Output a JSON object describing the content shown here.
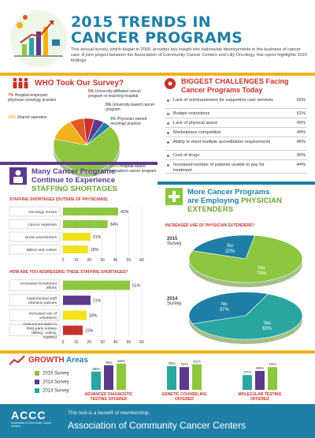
{
  "header": {
    "title_line1": "2015 TRENDS IN",
    "title_line2": "CANCER PROGRAMS",
    "intro": "This annual survey, which began in 2009, provides key insight into nationwide developments in the business of cancer care. A joint project between the Association of Community Cancer Centers and Lilly Oncology, this report highlights 2015 findings."
  },
  "who_section": {
    "title": "WHO Took Our Survey?",
    "chart_data": {
      "type": "pie",
      "slices": [
        {
          "label": "Hospital-based outpatient cancer program",
          "value": 66,
          "pct_label": "66%",
          "color": "#8dc63f"
        },
        {
          "label": "Shared operation",
          "value": 13,
          "pct_label": "13%",
          "color": "#f2b21b"
        },
        {
          "label": "Hospital-employed physician oncology practice",
          "value": 7,
          "pct_label": "7%",
          "color": "#e35a26"
        },
        {
          "label": "University-affiliated cancer program or teaching hospital",
          "value": 5,
          "pct_label": "5%",
          "color": "#c8312b"
        },
        {
          "label": "University-based cancer program",
          "value": 5,
          "pct_label": "5%",
          "color": "#5b3a8c"
        },
        {
          "label": "Physician-owned oncology practice",
          "value": 4,
          "pct_label": "4%",
          "color": "#1f7fa6"
        }
      ]
    }
  },
  "challenges": {
    "title_line1": "BIGGEST CHALLENGES Facing",
    "title_line2": "Cancer Programs Today",
    "items": [
      {
        "label": "Lack of reimbursement for supportive care services",
        "value": "65%"
      },
      {
        "label": "Budget restrictions",
        "value": "61%"
      },
      {
        "label": "Lack of physical space",
        "value": "49%"
      },
      {
        "label": "Marketplace competition",
        "value": "49%"
      },
      {
        "label": "Ability to meet multiple accreditation requirements",
        "value": "46%"
      },
      {
        "label": "Cost of drugs",
        "value": "45%"
      },
      {
        "label": "Increased number of patients unable to pay for treatment",
        "value": "44%"
      }
    ]
  },
  "staffing": {
    "title_line1": "Many Cancer Programs",
    "title_line2": "Continue to Experience",
    "title_line3": "STAFFING SHORTAGES",
    "chart_title": "STAFFING SHORTAGES (OUTSIDE OF PHYSICIANS)",
    "chart_data": {
      "type": "bar",
      "categories": [
        "Oncology nurses",
        "Cancer registrars",
        "Nurse practitioners",
        "Billers and coders"
      ],
      "values": [
        42,
        34,
        21,
        19
      ],
      "value_labels": [
        "42%",
        "34%",
        "21%",
        "19%"
      ],
      "colors": [
        "#8dc63f",
        "#8dc63f",
        "#f2e21b",
        "#f2e21b"
      ],
      "xlim": [
        0,
        60
      ],
      "ticks": [
        "0",
        "10",
        "20",
        "30",
        "40",
        "50",
        "60"
      ]
    }
  },
  "addressing": {
    "chart_title": "HOW ARE YOU ADDRESSING THESE STAFFING SHORTAGES?",
    "chart_data": {
      "type": "bar",
      "categories": [
        "Increased recruitment efforts",
        "Implemented staff retention policies",
        "Increased use of volunteers",
        "Outsourced tasks to third-party entities (billing, coding, registry)"
      ],
      "values": [
        51,
        21,
        18,
        15
      ],
      "value_labels": [
        "51%",
        "21%",
        "18%",
        "15%"
      ],
      "colors": [
        "#8dc63f",
        "#5b3a8c",
        "#f2e21b",
        "#c8312b"
      ],
      "xlim": [
        0,
        60
      ],
      "ticks": [
        "0",
        "10",
        "20",
        "30",
        "40",
        "50",
        "60"
      ]
    }
  },
  "extenders": {
    "title_line1": "More Cancer Programs",
    "title_line2": "are Employing",
    "title_highlight": "PHYSICIAN",
    "title_line3": "EXTENDERS",
    "chart_title": "INCREASED USE OF PHYSICIAN EXTENDERS?",
    "chart_data": [
      {
        "type": "pie",
        "year": "2015",
        "label2": "Survey",
        "slices": [
          {
            "label": "Yes",
            "value": 78,
            "pct_label": "78%",
            "color": "#8dc63f"
          },
          {
            "label": "No",
            "value": 22,
            "pct_label": "22%",
            "color": "#1f7fa6"
          }
        ]
      },
      {
        "type": "pie",
        "year": "2014",
        "label2": "Survey",
        "slices": [
          {
            "label": "Yes",
            "value": 63,
            "pct_label": "63%",
            "color": "#2aa6a0"
          },
          {
            "label": "No",
            "value": 37,
            "pct_label": "37%",
            "color": "#1f7fa6"
          }
        ]
      }
    ]
  },
  "growth": {
    "title_word": "GROWTH",
    "title_rest": "Areas",
    "legend": [
      {
        "label": "2015 Survey",
        "color": "#8dc63f"
      },
      {
        "label": "2014 Survey",
        "color": "#5b3a8c"
      },
      {
        "label": "2013 Survey",
        "color": "#2aa6a0"
      }
    ],
    "chart_data": {
      "type": "bar",
      "groups": [
        {
          "label_line1": "ADVANCED DIAGNOSTIC",
          "label_line2": "TESTING OFFERED",
          "values": [
            58,
            78,
            83
          ],
          "value_labels": [
            "58%",
            "78%",
            "83%"
          ]
        },
        {
          "label_line1": "GENETIC COUNSELING",
          "label_line2": "OFFERED",
          "values": [
            75,
            72,
            81
          ],
          "value_labels": [
            "75%",
            "72%",
            "81%"
          ]
        },
        {
          "label_line1": "MOLECULAR TESTING",
          "label_line2": "OFFERED",
          "values": [
            47,
            60,
            72
          ],
          "value_labels": [
            "47%",
            "60%",
            "72%"
          ]
        }
      ],
      "bar_colors": [
        "#2aa6a0",
        "#5b3a8c",
        "#8dc63f"
      ]
    }
  },
  "footer": {
    "benefit": "This tool is a benefit of membership.",
    "org": "Association of Community Cancer Centers",
    "logo_text": "ACCC",
    "logo_sub": "Association of Community Cancer Centers"
  }
}
